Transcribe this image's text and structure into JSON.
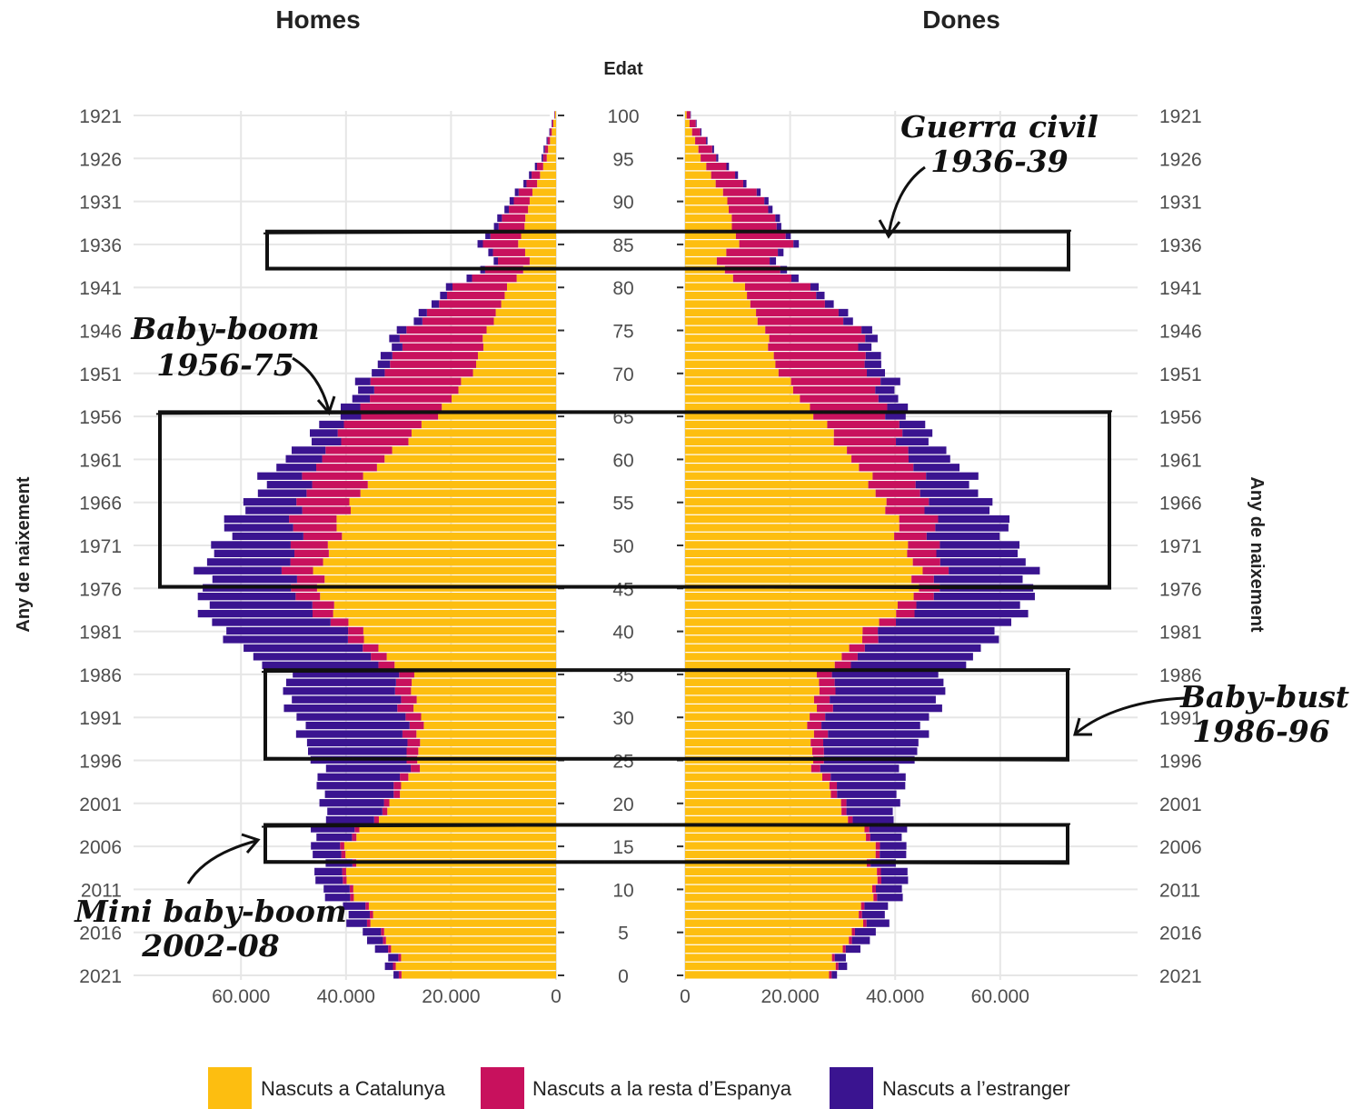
{
  "chart_data": {
    "type": "bar",
    "subtype": "population-pyramid-stacked",
    "panels": [
      "Homes",
      "Dones"
    ],
    "center_axis_title": "Edat",
    "side_axis_title": "Any de naixement",
    "age_range": [
      0,
      100
    ],
    "birth_year_range": [
      1921,
      2021
    ],
    "age_ticks": [
      "100",
      "95",
      "90",
      "85",
      "80",
      "75",
      "70",
      "65",
      "60",
      "55",
      "50",
      "45",
      "40",
      "35",
      "30",
      "25",
      "20",
      "15",
      "10",
      "5",
      "0"
    ],
    "year_ticks": [
      "1921",
      "1926",
      "1931",
      "1936",
      "1941",
      "1946",
      "1951",
      "1956",
      "1961",
      "1966",
      "1971",
      "1976",
      "1981",
      "1986",
      "1991",
      "1996",
      "2001",
      "2006",
      "2011",
      "2016",
      "2021"
    ],
    "x_range": [
      0,
      75000
    ],
    "men_x_ticks": [
      "60.000",
      "40.000",
      "20.000",
      "0"
    ],
    "women_x_ticks": [
      "0",
      "20.000",
      "40.000",
      "60.000"
    ],
    "x_tick_values": [
      0,
      20000,
      40000,
      60000
    ],
    "series": [
      {
        "key": "cat",
        "name": "Nascuts a Catalunya",
        "color": "#FDBE10"
      },
      {
        "key": "esp",
        "name": "Nascuts a la resta d’Espanya",
        "color": "#C8115D"
      },
      {
        "key": "est",
        "name": "Nascuts a l’estranger",
        "color": "#3A1490"
      }
    ],
    "men_anchor_points": [
      {
        "age": 0,
        "cat": 29000,
        "esp": 500,
        "est": 1000
      },
      {
        "age": 5,
        "cat": 33000,
        "esp": 600,
        "est": 3500
      },
      {
        "age": 10,
        "cat": 39000,
        "esp": 700,
        "est": 5000
      },
      {
        "age": 15,
        "cat": 40000,
        "esp": 800,
        "est": 5500
      },
      {
        "age": 20,
        "cat": 31000,
        "esp": 1000,
        "est": 12000
      },
      {
        "age": 25,
        "cat": 26000,
        "esp": 2000,
        "est": 18000
      },
      {
        "age": 30,
        "cat": 26000,
        "esp": 3000,
        "est": 21000
      },
      {
        "age": 35,
        "cat": 28000,
        "esp": 3000,
        "est": 21000
      },
      {
        "age": 40,
        "cat": 38000,
        "esp": 3000,
        "est": 24000
      },
      {
        "age": 45,
        "cat": 46000,
        "esp": 5000,
        "est": 17000
      },
      {
        "age": 50,
        "cat": 43000,
        "esp": 7000,
        "est": 15000
      },
      {
        "age": 55,
        "cat": 39000,
        "esp": 10000,
        "est": 10000
      },
      {
        "age": 60,
        "cat": 33000,
        "esp": 12000,
        "est": 7000
      },
      {
        "age": 65,
        "cat": 23000,
        "esp": 15000,
        "est": 4000
      },
      {
        "age": 70,
        "cat": 16000,
        "esp": 17000,
        "est": 2500
      },
      {
        "age": 75,
        "cat": 13000,
        "esp": 15000,
        "est": 1800
      },
      {
        "age": 80,
        "cat": 9000,
        "esp": 10000,
        "est": 1200
      },
      {
        "age": 83,
        "cat": 5000,
        "esp": 6000,
        "est": 800
      },
      {
        "age": 85,
        "cat": 7000,
        "esp": 6500,
        "est": 1000
      },
      {
        "age": 90,
        "cat": 5000,
        "esp": 3000,
        "est": 800
      },
      {
        "age": 95,
        "cat": 1800,
        "esp": 700,
        "est": 300
      },
      {
        "age": 100,
        "cat": 200,
        "esp": 100,
        "est": 50
      }
    ],
    "women_anchor_points": [
      {
        "age": 0,
        "cat": 27000,
        "esp": 500,
        "est": 1000
      },
      {
        "age": 5,
        "cat": 32000,
        "esp": 600,
        "est": 4000
      },
      {
        "age": 10,
        "cat": 36000,
        "esp": 700,
        "est": 5000
      },
      {
        "age": 15,
        "cat": 36000,
        "esp": 800,
        "est": 5000
      },
      {
        "age": 20,
        "cat": 29000,
        "esp": 1000,
        "est": 10000
      },
      {
        "age": 25,
        "cat": 24000,
        "esp": 2000,
        "est": 17000
      },
      {
        "age": 30,
        "cat": 24000,
        "esp": 3000,
        "est": 20000
      },
      {
        "age": 35,
        "cat": 26000,
        "esp": 3000,
        "est": 21000
      },
      {
        "age": 40,
        "cat": 35000,
        "esp": 3000,
        "est": 23000
      },
      {
        "age": 45,
        "cat": 45000,
        "esp": 4000,
        "est": 18000
      },
      {
        "age": 50,
        "cat": 42000,
        "esp": 6000,
        "est": 15000
      },
      {
        "age": 55,
        "cat": 38000,
        "esp": 8000,
        "est": 12000
      },
      {
        "age": 60,
        "cat": 32000,
        "esp": 11000,
        "est": 8000
      },
      {
        "age": 65,
        "cat": 25000,
        "esp": 14000,
        "est": 4000
      },
      {
        "age": 70,
        "cat": 18000,
        "esp": 17000,
        "est": 3500
      },
      {
        "age": 75,
        "cat": 15000,
        "esp": 18000,
        "est": 2000
      },
      {
        "age": 80,
        "cat": 11000,
        "esp": 12000,
        "est": 1500
      },
      {
        "age": 83,
        "cat": 6000,
        "esp": 10000,
        "est": 1200
      },
      {
        "age": 85,
        "cat": 10000,
        "esp": 10000,
        "est": 1000
      },
      {
        "age": 90,
        "cat": 8000,
        "esp": 7000,
        "est": 800
      },
      {
        "age": 95,
        "cat": 3000,
        "esp": 3000,
        "est": 400
      },
      {
        "age": 100,
        "cat": 300,
        "esp": 700,
        "est": 100
      }
    ],
    "annotations": [
      {
        "key": "guerra",
        "lines": [
          "Guerra civil",
          "1936-39"
        ],
        "age_from": 82,
        "age_to": 86
      },
      {
        "key": "boom",
        "lines": [
          "Baby-boom",
          "1956-75"
        ],
        "age_from": 45,
        "age_to": 65
      },
      {
        "key": "bust",
        "lines": [
          "Baby-bust",
          "1986-96"
        ],
        "age_from": 25,
        "age_to": 35
      },
      {
        "key": "mini",
        "lines": [
          "Mini baby-boom",
          "2002-08"
        ],
        "age_from": 13,
        "age_to": 17
      }
    ],
    "legend_position": "bottom",
    "grid": true
  }
}
